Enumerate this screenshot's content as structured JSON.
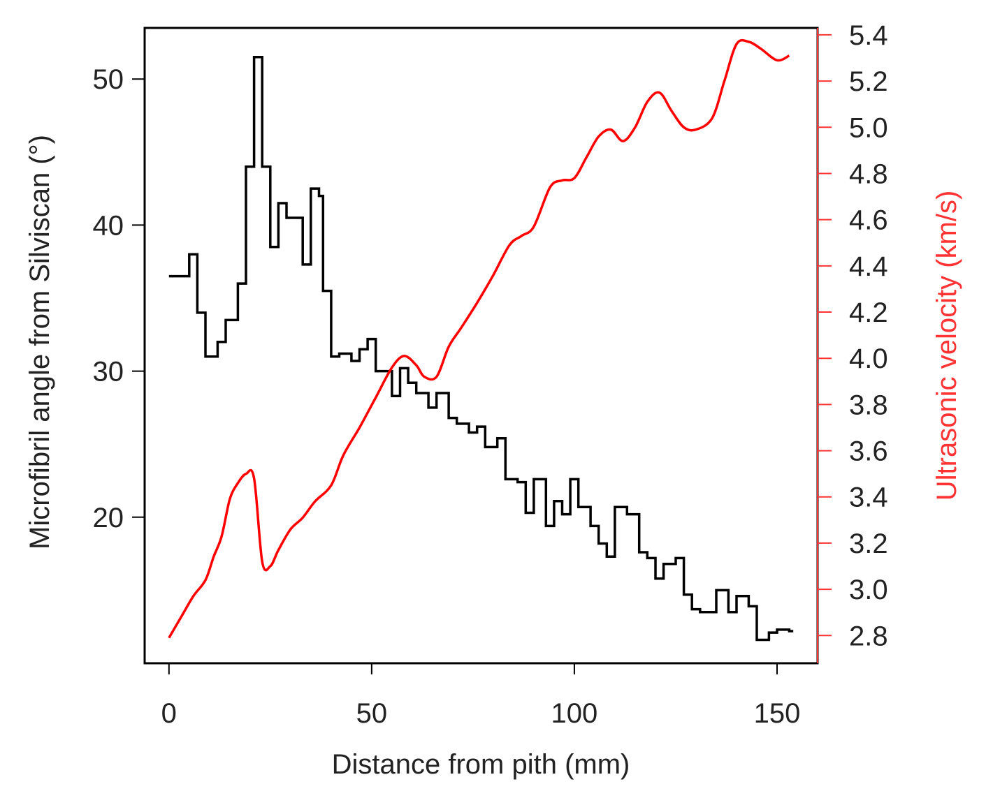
{
  "chart_data": {
    "type": "line",
    "xlabel": "Distance from pith (mm)",
    "ylabel_left": "Microfibril angle from Silviscan (°)",
    "ylabel_right": "Ultrasonic velocity (km/s)",
    "xlim": [
      -6,
      160
    ],
    "ylim_left": [
      10,
      53.5
    ],
    "ylim_right": [
      2.68,
      5.43
    ],
    "x_ticks": [
      "0",
      "50",
      "100",
      "150"
    ],
    "y_left_ticks": [
      "20",
      "30",
      "40",
      "50"
    ],
    "y_right_ticks": [
      "2.8",
      "3.0",
      "3.2",
      "3.4",
      "3.6",
      "3.8",
      "4.0",
      "4.2",
      "4.4",
      "4.6",
      "4.8",
      "5.0",
      "5.2",
      "5.4"
    ],
    "colors": {
      "mfa": "#000000",
      "velocity": "#ff0000",
      "right_axis": "#ff3333"
    },
    "series": [
      {
        "axis": "left",
        "style": "step",
        "x": [
          0,
          5,
          7,
          9,
          12,
          14,
          17,
          19,
          21,
          23,
          25,
          27,
          29,
          33,
          35,
          37,
          38,
          40,
          42,
          45,
          47,
          49,
          51,
          55,
          57,
          59,
          61,
          64,
          66,
          69,
          71,
          74,
          76,
          78,
          81,
          83,
          86,
          88,
          90,
          93,
          95,
          97,
          99,
          101,
          104,
          106,
          108,
          110,
          113,
          116,
          118,
          120,
          122,
          125,
          127,
          129,
          131,
          135,
          138,
          140,
          143,
          145,
          148,
          150,
          153
        ],
        "values": [
          36.5,
          38,
          34,
          31,
          32,
          33.5,
          36,
          44,
          51.5,
          44,
          38.5,
          41.5,
          40.5,
          37.3,
          42.5,
          42,
          35.5,
          31,
          31.2,
          30.7,
          31.5,
          32.2,
          30,
          28.3,
          30.2,
          29.2,
          28.5,
          27.5,
          28.5,
          26.8,
          26.4,
          25.8,
          26.2,
          24.8,
          25.4,
          22.6,
          22.4,
          20.3,
          22.6,
          19.4,
          21.1,
          20.2,
          22.6,
          20.7,
          19.4,
          18.2,
          17.3,
          20.7,
          20.2,
          17.6,
          17.2,
          15.8,
          16.8,
          17.2,
          14.7,
          13.7,
          13.5,
          15.0,
          13.5,
          14.6,
          13.9,
          11.6,
          12.1,
          12.3,
          12.2
        ]
      },
      {
        "axis": "right",
        "style": "line",
        "x": [
          0,
          3,
          6,
          9,
          11,
          13,
          15,
          17,
          19,
          21,
          23,
          25,
          27,
          30,
          33,
          36,
          40,
          43,
          47,
          51,
          55,
          58,
          61,
          63,
          66,
          69,
          72,
          76,
          80,
          84,
          87,
          90,
          94,
          97,
          100,
          103,
          106,
          109,
          112,
          115,
          118,
          121,
          124,
          127,
          130,
          134,
          137,
          140,
          143,
          146,
          150,
          153
        ],
        "values": [
          2.79,
          2.88,
          2.97,
          3.04,
          3.14,
          3.23,
          3.39,
          3.46,
          3.5,
          3.48,
          3.12,
          3.1,
          3.17,
          3.26,
          3.31,
          3.38,
          3.45,
          3.58,
          3.7,
          3.83,
          3.96,
          4.01,
          3.97,
          3.92,
          3.92,
          4.05,
          4.13,
          4.24,
          4.36,
          4.49,
          4.53,
          4.57,
          4.74,
          4.77,
          4.78,
          4.87,
          4.96,
          4.99,
          4.94,
          5.0,
          5.11,
          5.15,
          5.07,
          5.0,
          4.99,
          5.04,
          5.2,
          5.36,
          5.37,
          5.34,
          5.29,
          5.31
        ]
      }
    ]
  }
}
